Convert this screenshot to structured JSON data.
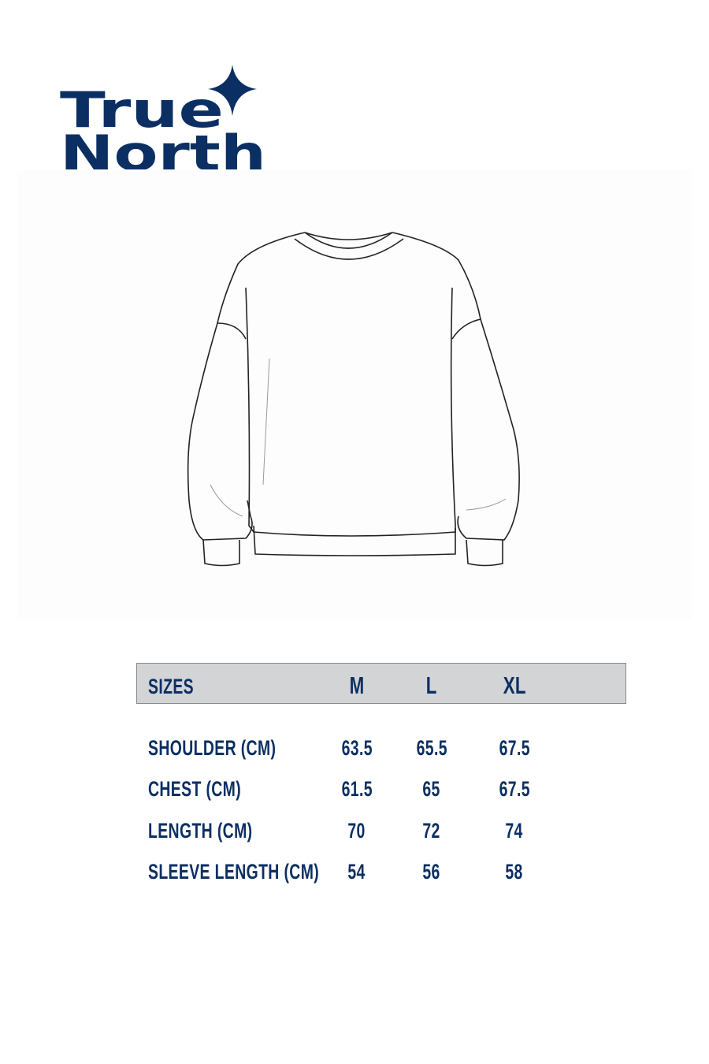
{
  "brand": {
    "line1": "True",
    "line2": "North",
    "color": "#0c2f63"
  },
  "illustration": {
    "icon": "sweatshirt-line-drawing"
  },
  "size_table": {
    "header": {
      "label": "SIZES",
      "sizes": [
        "M",
        "L",
        "XL"
      ]
    },
    "header_bg": "#d3d4d6",
    "rows": [
      {
        "label": "SHOULDER (CM)",
        "values": [
          "63.5",
          "65.5",
          "67.5"
        ]
      },
      {
        "label": "CHEST (CM)",
        "values": [
          "61.5",
          "65",
          "67.5"
        ]
      },
      {
        "label": "LENGTH (CM)",
        "values": [
          "70",
          "72",
          "74"
        ]
      },
      {
        "label": "SLEEVE LENGTH (CM)",
        "values": [
          "54",
          "56",
          "58"
        ]
      }
    ]
  }
}
